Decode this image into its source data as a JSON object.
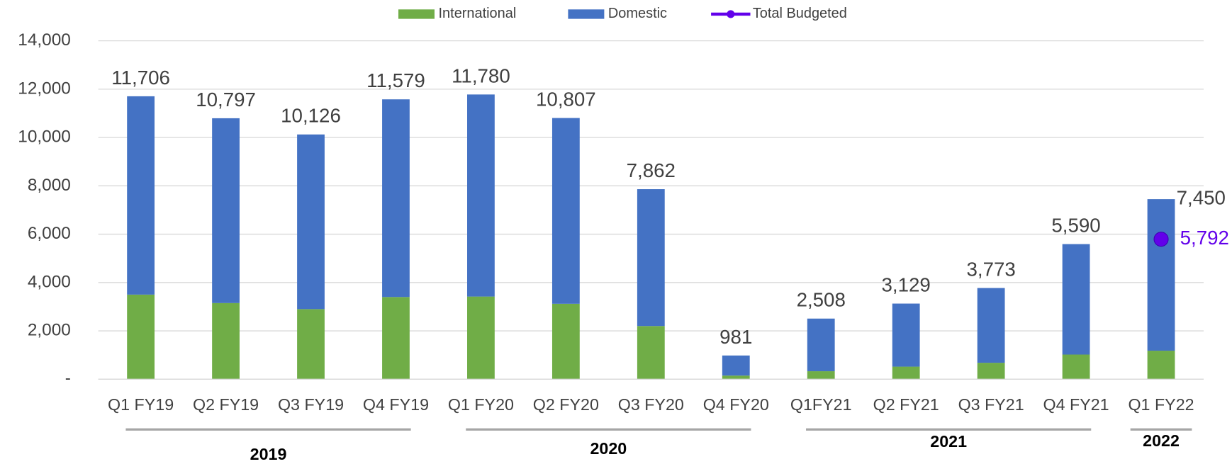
{
  "chart_data": {
    "type": "bar",
    "stacked": true,
    "categories": [
      "Q1 FY19",
      "Q2 FY19",
      "Q3 FY19",
      "Q4 FY19",
      "Q1 FY20",
      "Q2 FY20",
      "Q3 FY20",
      "Q4 FY20",
      "Q1FY21",
      "Q2 FY21",
      "Q3 FY21",
      "Q4 FY21",
      "Q1 FY22"
    ],
    "series": [
      {
        "name": "International",
        "color": "#70ad47",
        "values": [
          3500,
          3150,
          2900,
          3400,
          3420,
          3120,
          2200,
          150,
          330,
          520,
          680,
          1020,
          1180
        ]
      },
      {
        "name": "Domestic",
        "color": "#4472c4",
        "values": [
          8206,
          7647,
          7226,
          8179,
          8360,
          7687,
          5662,
          831,
          2178,
          2609,
          3093,
          4570,
          6270
        ]
      },
      {
        "name": "Total Budgeted",
        "type": "line",
        "color": "#6200ea",
        "values": [
          null,
          null,
          null,
          null,
          null,
          null,
          null,
          null,
          null,
          null,
          null,
          null,
          5792
        ],
        "value_labels": [
          null,
          null,
          null,
          null,
          null,
          null,
          null,
          null,
          null,
          null,
          null,
          null,
          "5,792"
        ]
      }
    ],
    "totals": [
      11706,
      10797,
      10126,
      11579,
      11780,
      10807,
      7862,
      981,
      2508,
      3129,
      3773,
      5590,
      7450
    ],
    "total_labels": [
      "11,706",
      "10,797",
      "10,126",
      "11,579",
      "11,780",
      "10,807",
      "7,862",
      "981",
      "2,508",
      "3,129",
      "3,773",
      "5,590",
      "7,450"
    ],
    "groups": [
      {
        "label": "2019",
        "span": 4
      },
      {
        "label": "2020",
        "span": 4
      },
      {
        "label": "2021",
        "span": 4
      },
      {
        "label": "2022",
        "span": 1
      }
    ],
    "ylim": [
      0,
      14000
    ],
    "yticks": [
      {
        "value": 0,
        "label": "-"
      },
      {
        "value": 2000,
        "label": "2,000"
      },
      {
        "value": 4000,
        "label": "4,000"
      },
      {
        "value": 6000,
        "label": "6,000"
      },
      {
        "value": 8000,
        "label": "8,000"
      },
      {
        "value": 10000,
        "label": "10,000"
      },
      {
        "value": 12000,
        "label": "12,000"
      },
      {
        "value": 14000,
        "label": "14,000"
      }
    ],
    "grid": true,
    "legend": "top"
  }
}
